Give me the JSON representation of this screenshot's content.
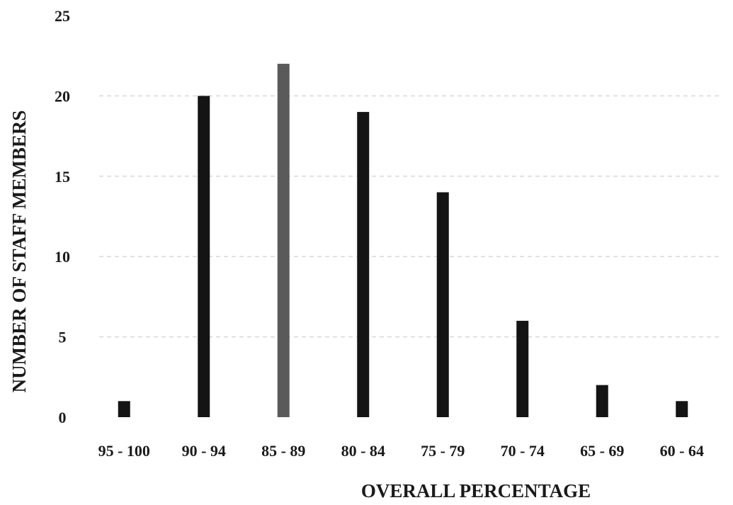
{
  "chart_data": {
    "type": "bar",
    "title": "",
    "xlabel": "OVERALL PERCENTAGE",
    "ylabel": "NUMBER OF STAFF MEMBERS",
    "categories": [
      "95 - 100",
      "90 - 94",
      "85 - 89",
      "80 - 84",
      "75 - 79",
      "70 - 74",
      "65 - 69",
      "60 - 64"
    ],
    "values": [
      1,
      20,
      22,
      19,
      14,
      6,
      2,
      1
    ],
    "ylim": [
      0,
      25
    ],
    "yticks": [
      0,
      5,
      10,
      15,
      20,
      25
    ],
    "grid": true,
    "legend": false,
    "colors": {
      "bar": "#141414",
      "highlight_bar": "#5a5a5a",
      "highlight_index": 2
    }
  }
}
